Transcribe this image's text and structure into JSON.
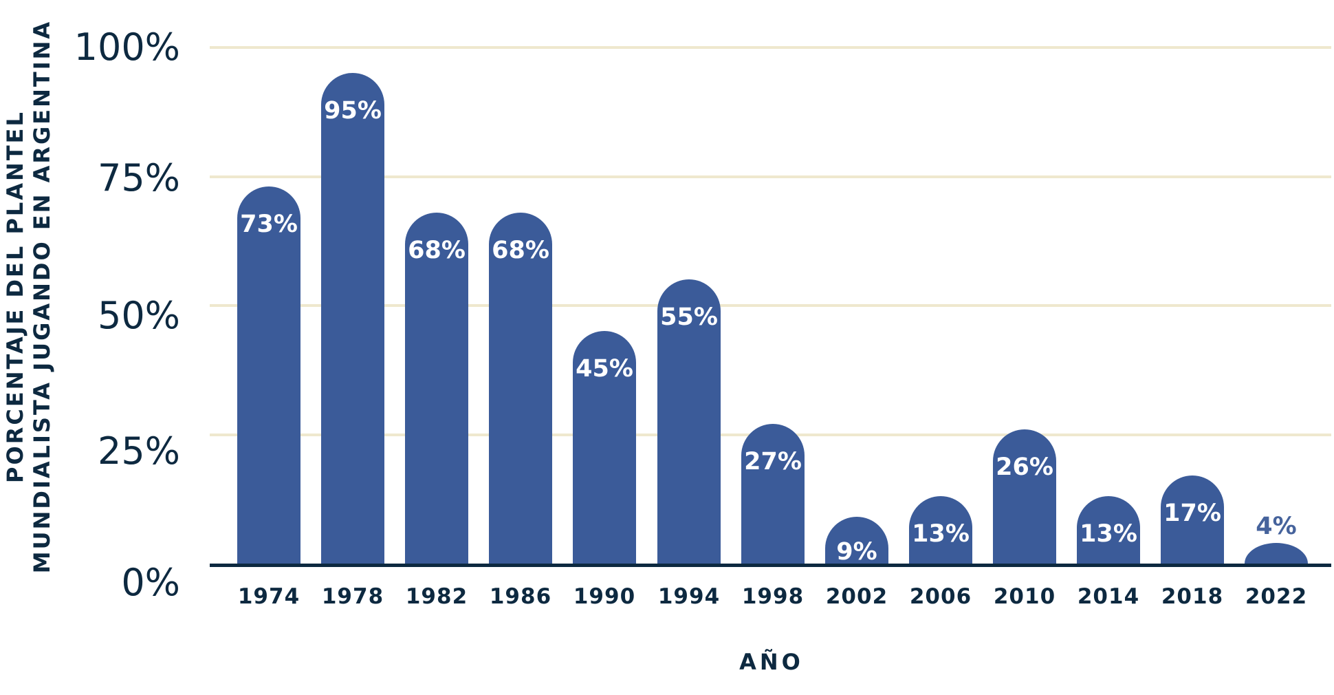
{
  "chart_data": {
    "type": "bar",
    "title": "",
    "xlabel": "AÑO",
    "ylabel_line1": "PORCENTAJE DEL PLANTEL",
    "ylabel_line2": "MUNDIALISTA JUGANDO EN ARGENTINA",
    "categories": [
      "1974",
      "1978",
      "1982",
      "1986",
      "1990",
      "1994",
      "1998",
      "2002",
      "2006",
      "2010",
      "2014",
      "2018",
      "2022"
    ],
    "values": [
      73,
      95,
      68,
      68,
      45,
      55,
      27,
      9,
      13,
      26,
      13,
      17,
      4
    ],
    "value_labels": [
      "73%",
      "95%",
      "68%",
      "68%",
      "45%",
      "55%",
      "27%",
      "9%",
      "13%",
      "26%",
      "13%",
      "17%",
      "4%"
    ],
    "yticks": [
      {
        "value": 100,
        "label": "100%"
      },
      {
        "value": 75,
        "label": "75%"
      },
      {
        "value": 50,
        "label": "50%"
      },
      {
        "value": 25,
        "label": "25%"
      },
      {
        "value": 0,
        "label": "0%"
      }
    ],
    "ylim": [
      0,
      100
    ],
    "grid": "horizontal",
    "legend": "none",
    "colors": {
      "bar": "#3B5B99",
      "text_navy": "#0D2940",
      "gridline": "#EFE8CE",
      "axis_line": "#0D2940",
      "value_label_inside": "#FFFFFF",
      "value_label_outside": "#46639C",
      "background": "#FFFFFF"
    }
  }
}
